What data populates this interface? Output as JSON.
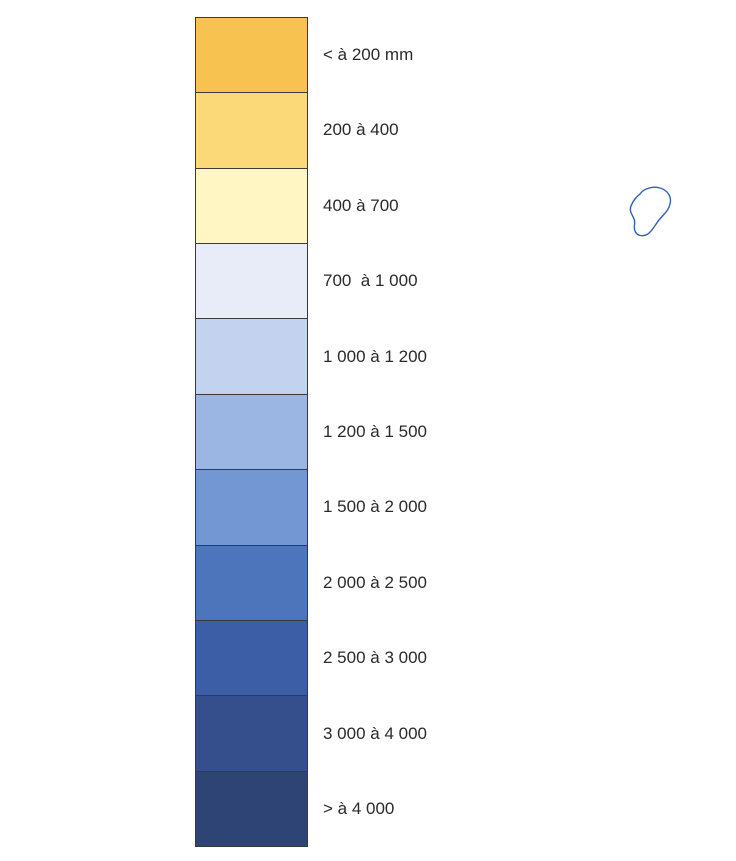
{
  "legend": {
    "classes": [
      {
        "label": "< à 200 mm",
        "color": "#f7c24f"
      },
      {
        "label": "200 à 400",
        "color": "#fbd978"
      },
      {
        "label": "400 à 700",
        "color": "#fff6c4"
      },
      {
        "label": "700  à 1 000",
        "color": "#e8ebf8"
      },
      {
        "label": "1 000 à 1 200",
        "color": "#c3d3ef"
      },
      {
        "label": "1 200 à 1 500",
        "color": "#9bb6e2"
      },
      {
        "label": "1 500 à 2 000",
        "color": "#7297d2"
      },
      {
        "label": "2 000 à 2 500",
        "color": "#4d75bb"
      },
      {
        "label": "2 500 à 3 000",
        "color": "#3b5ea6"
      },
      {
        "label": "3 000 à 4 000",
        "color": "#344f8b"
      },
      {
        "label": "> à 4 000",
        "color": "#2e4474"
      }
    ]
  },
  "map": {
    "island_outline_color": "#2f5fb8"
  }
}
